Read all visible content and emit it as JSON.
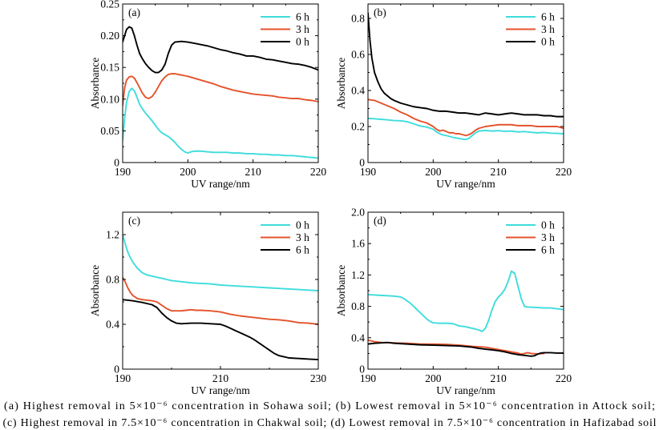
{
  "figure": {
    "caption_lines": [
      "(a) Highest removal in 5×10⁻⁶ concentration in Sohawa soil; (b) Lowest removal in 5×10⁻⁶ concentration in Attock soil;",
      "(c) Highest removal in 7.5×10⁻⁶ concentration in Chakwal soil; (d) Lowest removal in 7.5×10⁻⁶ concentration in Hafizabad soil"
    ]
  },
  "chart_data": [
    {
      "type": "line",
      "panel_label": "(a)",
      "xlabel": "UV range/nm",
      "ylabel": "Absorbance",
      "xlim": [
        190,
        220
      ],
      "ylim": [
        0,
        0.25
      ],
      "xticks": [
        190,
        200,
        210,
        220
      ],
      "xtick_labels": [
        "190",
        "200",
        "210",
        "220"
      ],
      "yticks": [
        0,
        0.05,
        0.1,
        0.15,
        0.2,
        0.25
      ],
      "ytick_labels": [
        "0",
        "0.05",
        "0.10",
        "0.15",
        "0.20",
        "0.25"
      ],
      "grid": false,
      "legend": "top-right",
      "series": [
        {
          "name": "6 h",
          "color": "#3fdcdc",
          "x": [
            190,
            190.3,
            190.6,
            191,
            191.4,
            191.8,
            192.2,
            192.6,
            193,
            193.5,
            194,
            194.5,
            195,
            195.5,
            196,
            196.5,
            197,
            197.5,
            198,
            198.5,
            199,
            199.5,
            200,
            200.5,
            201,
            202,
            203,
            204,
            205,
            206,
            207,
            208,
            209,
            210,
            211,
            212,
            213,
            214,
            215,
            216,
            217,
            218,
            219,
            220
          ],
          "y": [
            0.035,
            0.07,
            0.095,
            0.112,
            0.117,
            0.113,
            0.103,
            0.092,
            0.085,
            0.078,
            0.072,
            0.066,
            0.059,
            0.052,
            0.047,
            0.044,
            0.041,
            0.037,
            0.032,
            0.026,
            0.021,
            0.017,
            0.015,
            0.017,
            0.018,
            0.018,
            0.017,
            0.016,
            0.016,
            0.016,
            0.015,
            0.015,
            0.014,
            0.014,
            0.013,
            0.013,
            0.012,
            0.012,
            0.011,
            0.011,
            0.01,
            0.009,
            0.008,
            0.007
          ]
        },
        {
          "name": "3 h",
          "color": "#e4532c",
          "x": [
            190,
            190.3,
            190.6,
            191,
            191.4,
            191.8,
            192.2,
            192.6,
            193,
            193.5,
            194,
            194.5,
            195,
            195.5,
            196,
            196.5,
            197,
            197.5,
            198,
            198.5,
            199,
            199.5,
            200,
            201,
            202,
            203,
            204,
            205,
            206,
            207,
            208,
            209,
            210,
            211,
            212,
            213,
            214,
            215,
            216,
            217,
            218,
            219,
            220
          ],
          "y": [
            0.09,
            0.118,
            0.13,
            0.135,
            0.136,
            0.133,
            0.126,
            0.118,
            0.11,
            0.103,
            0.101,
            0.104,
            0.111,
            0.12,
            0.129,
            0.135,
            0.139,
            0.14,
            0.14,
            0.139,
            0.138,
            0.137,
            0.136,
            0.133,
            0.13,
            0.127,
            0.124,
            0.12,
            0.117,
            0.114,
            0.112,
            0.11,
            0.108,
            0.107,
            0.106,
            0.105,
            0.103,
            0.102,
            0.101,
            0.101,
            0.099,
            0.098,
            0.096
          ]
        },
        {
          "name": "0 h",
          "color": "#000000",
          "x": [
            190,
            190.3,
            190.6,
            191,
            191.4,
            191.8,
            192.2,
            192.6,
            193,
            193.5,
            194,
            194.5,
            195,
            195.5,
            196,
            196.5,
            197,
            197.5,
            198,
            199,
            200,
            201,
            202,
            203,
            204,
            205,
            206,
            207,
            208,
            209,
            210,
            211,
            212,
            213,
            214,
            215,
            216,
            217,
            218,
            219,
            220
          ],
          "y": [
            0.19,
            0.2,
            0.21,
            0.214,
            0.212,
            0.2,
            0.185,
            0.172,
            0.164,
            0.156,
            0.15,
            0.145,
            0.142,
            0.142,
            0.146,
            0.155,
            0.172,
            0.185,
            0.19,
            0.191,
            0.19,
            0.188,
            0.186,
            0.184,
            0.181,
            0.178,
            0.176,
            0.173,
            0.171,
            0.168,
            0.168,
            0.166,
            0.163,
            0.162,
            0.16,
            0.158,
            0.156,
            0.155,
            0.153,
            0.15,
            0.146
          ]
        }
      ]
    },
    {
      "type": "line",
      "panel_label": "(b)",
      "xlabel": "UV range/nm",
      "ylabel": "Absorbance",
      "xlim": [
        190,
        220
      ],
      "ylim": [
        0,
        0.88
      ],
      "xticks": [
        190,
        200,
        210,
        220
      ],
      "xtick_labels": [
        "190",
        "200",
        "210",
        "220"
      ],
      "yticks": [
        0,
        0.2,
        0.4,
        0.6,
        0.8
      ],
      "ytick_labels": [
        "0",
        "0.2",
        "0.4",
        "0.6",
        "0.8"
      ],
      "grid": false,
      "legend": "top-right",
      "series": [
        {
          "name": "6 h",
          "color": "#3fdcdc",
          "x": [
            190,
            191,
            192,
            193,
            194,
            195,
            196,
            197,
            198,
            199,
            200,
            200.5,
            201,
            201.5,
            202,
            202.5,
            203,
            203.5,
            204,
            204.5,
            205,
            205.5,
            206,
            206.5,
            207,
            208,
            209,
            210,
            211,
            212,
            213,
            214,
            215,
            216,
            217,
            218,
            219,
            220
          ],
          "y": [
            0.245,
            0.243,
            0.24,
            0.237,
            0.233,
            0.232,
            0.227,
            0.215,
            0.203,
            0.197,
            0.185,
            0.17,
            0.16,
            0.153,
            0.15,
            0.145,
            0.14,
            0.137,
            0.133,
            0.13,
            0.128,
            0.135,
            0.15,
            0.165,
            0.175,
            0.178,
            0.175,
            0.177,
            0.173,
            0.175,
            0.17,
            0.172,
            0.168,
            0.165,
            0.167,
            0.163,
            0.162,
            0.16
          ]
        },
        {
          "name": "3 h",
          "color": "#e4532c",
          "x": [
            190,
            191,
            192,
            193,
            194,
            195,
            196,
            197,
            198,
            199,
            200,
            200.5,
            201,
            201.5,
            202,
            202.5,
            203,
            203.5,
            204,
            204.5,
            205,
            205.5,
            206,
            206.5,
            207,
            208,
            209,
            210,
            211,
            212,
            213,
            214,
            215,
            216,
            217,
            218,
            219,
            220
          ],
          "y": [
            0.35,
            0.345,
            0.33,
            0.315,
            0.3,
            0.28,
            0.265,
            0.245,
            0.23,
            0.22,
            0.2,
            0.185,
            0.175,
            0.18,
            0.172,
            0.165,
            0.165,
            0.16,
            0.16,
            0.155,
            0.15,
            0.155,
            0.165,
            0.18,
            0.19,
            0.2,
            0.205,
            0.21,
            0.21,
            0.21,
            0.205,
            0.205,
            0.205,
            0.2,
            0.2,
            0.2,
            0.2,
            0.19
          ]
        },
        {
          "name": "0 h",
          "color": "#000000",
          "x": [
            190,
            190.3,
            190.6,
            191,
            191.5,
            192,
            192.5,
            193,
            193.5,
            194,
            195,
            196,
            197,
            198,
            199,
            200,
            201,
            202,
            203,
            204,
            205,
            206,
            207,
            208,
            209,
            210,
            211,
            212,
            213,
            214,
            215,
            216,
            217,
            218,
            219,
            220
          ],
          "y": [
            0.83,
            0.68,
            0.58,
            0.5,
            0.45,
            0.41,
            0.385,
            0.37,
            0.355,
            0.345,
            0.33,
            0.32,
            0.31,
            0.305,
            0.3,
            0.29,
            0.285,
            0.285,
            0.28,
            0.275,
            0.275,
            0.27,
            0.265,
            0.275,
            0.27,
            0.265,
            0.27,
            0.275,
            0.27,
            0.265,
            0.265,
            0.265,
            0.26,
            0.26,
            0.255,
            0.255
          ]
        }
      ]
    },
    {
      "type": "line",
      "panel_label": "(c)",
      "xlabel": "UV range/nm",
      "ylabel": "Absorbance",
      "xlim": [
        190,
        230
      ],
      "ylim": [
        0,
        1.4
      ],
      "xticks": [
        190,
        210,
        230
      ],
      "xtick_labels": [
        "190",
        "210",
        "230"
      ],
      "yticks": [
        0,
        0.4,
        0.8,
        1.2
      ],
      "ytick_labels": [
        "0",
        "0.4",
        "0.8",
        "1.2"
      ],
      "grid": false,
      "legend": "top-right",
      "series": [
        {
          "name": "0 h",
          "color": "#3fdcdc",
          "x": [
            190,
            190.5,
            191,
            191.5,
            192,
            192.5,
            193,
            194,
            195,
            196,
            197,
            198,
            199,
            200,
            202,
            204,
            206,
            208,
            210,
            212,
            214,
            216,
            218,
            220,
            222,
            224,
            226,
            228,
            230
          ],
          "y": [
            1.2,
            1.12,
            1.05,
            1.0,
            0.96,
            0.93,
            0.9,
            0.86,
            0.84,
            0.83,
            0.82,
            0.81,
            0.8,
            0.79,
            0.78,
            0.77,
            0.765,
            0.76,
            0.75,
            0.745,
            0.74,
            0.735,
            0.73,
            0.725,
            0.72,
            0.715,
            0.71,
            0.705,
            0.7
          ]
        },
        {
          "name": "3 h",
          "color": "#e4532c",
          "x": [
            190,
            190.5,
            191,
            191.5,
            192,
            193,
            194,
            195,
            196,
            197,
            198,
            199,
            200,
            201,
            202,
            203,
            204,
            205,
            206,
            208,
            210,
            212,
            214,
            216,
            218,
            220,
            222,
            224,
            226,
            228,
            230
          ],
          "y": [
            0.82,
            0.78,
            0.73,
            0.69,
            0.66,
            0.63,
            0.62,
            0.615,
            0.61,
            0.6,
            0.57,
            0.54,
            0.52,
            0.52,
            0.52,
            0.525,
            0.53,
            0.525,
            0.525,
            0.52,
            0.51,
            0.49,
            0.475,
            0.465,
            0.455,
            0.445,
            0.44,
            0.43,
            0.415,
            0.41,
            0.4
          ]
        },
        {
          "name": "6 h",
          "color": "#000000",
          "x": [
            190,
            192,
            194,
            196,
            197,
            198,
            199,
            200,
            201,
            202,
            204,
            206,
            208,
            210,
            211,
            212,
            213,
            214,
            215,
            216,
            217,
            218,
            219,
            220,
            221,
            222,
            223,
            224,
            226,
            228,
            230
          ],
          "y": [
            0.62,
            0.61,
            0.595,
            0.575,
            0.55,
            0.5,
            0.46,
            0.43,
            0.41,
            0.405,
            0.41,
            0.41,
            0.405,
            0.4,
            0.385,
            0.365,
            0.345,
            0.325,
            0.305,
            0.285,
            0.26,
            0.23,
            0.2,
            0.17,
            0.14,
            0.12,
            0.11,
            0.1,
            0.095,
            0.09,
            0.085
          ]
        }
      ]
    },
    {
      "type": "line",
      "panel_label": "(d)",
      "xlabel": "UV range/nm",
      "ylabel": "Absorbance",
      "xlim": [
        190,
        220
      ],
      "ylim": [
        0,
        2.0
      ],
      "xticks": [
        190,
        200,
        210,
        220
      ],
      "xtick_labels": [
        "190",
        "200",
        "210",
        "220"
      ],
      "yticks": [
        0,
        0.4,
        0.8,
        1.2,
        1.6,
        2.0
      ],
      "ytick_labels": [
        "0",
        "0.4",
        "0.8",
        "1.2",
        "1.6",
        "2.0"
      ],
      "grid": false,
      "legend": "top-right",
      "series": [
        {
          "name": "0 h",
          "color": "#3fdcdc",
          "x": [
            190,
            192,
            194,
            195,
            195.5,
            196,
            196.5,
            197,
            197.5,
            198,
            198.5,
            199,
            199.5,
            200,
            201,
            202,
            203,
            204,
            205,
            206,
            207,
            207.5,
            208,
            208.5,
            209,
            209.5,
            210,
            210.5,
            211,
            211.5,
            212,
            212.5,
            213,
            213.5,
            214,
            214.5,
            215,
            216,
            217,
            218,
            219,
            220
          ],
          "y": [
            0.95,
            0.94,
            0.93,
            0.92,
            0.9,
            0.87,
            0.84,
            0.8,
            0.76,
            0.72,
            0.68,
            0.64,
            0.61,
            0.59,
            0.585,
            0.585,
            0.58,
            0.55,
            0.54,
            0.52,
            0.5,
            0.48,
            0.52,
            0.62,
            0.75,
            0.86,
            0.92,
            0.96,
            1.02,
            1.12,
            1.25,
            1.22,
            1.06,
            0.9,
            0.8,
            0.79,
            0.79,
            0.785,
            0.78,
            0.78,
            0.77,
            0.76
          ]
        },
        {
          "name": "3 h",
          "color": "#e4532c",
          "x": [
            190,
            191,
            192,
            194,
            196,
            198,
            200,
            202,
            204,
            206,
            208,
            209,
            210,
            211,
            212,
            213,
            213.5,
            214,
            214.5,
            215,
            216,
            217
          ],
          "y": [
            0.37,
            0.35,
            0.34,
            0.335,
            0.33,
            0.32,
            0.32,
            0.315,
            0.305,
            0.29,
            0.28,
            0.265,
            0.25,
            0.235,
            0.22,
            0.205,
            0.19,
            0.2,
            0.21,
            0.2,
            0.195,
            0.2
          ]
        },
        {
          "name": "6 h",
          "color": "#000000",
          "x": [
            190,
            191,
            192,
            193,
            194,
            196,
            198,
            200,
            202,
            204,
            206,
            207,
            208,
            209,
            210,
            211,
            212,
            213,
            214,
            215,
            215.5,
            216,
            216.5,
            217,
            218,
            219,
            220
          ],
          "y": [
            0.32,
            0.33,
            0.335,
            0.34,
            0.33,
            0.32,
            0.31,
            0.305,
            0.3,
            0.295,
            0.28,
            0.265,
            0.255,
            0.245,
            0.235,
            0.22,
            0.2,
            0.185,
            0.175,
            0.165,
            0.17,
            0.19,
            0.205,
            0.21,
            0.21,
            0.205,
            0.205
          ]
        }
      ]
    }
  ]
}
